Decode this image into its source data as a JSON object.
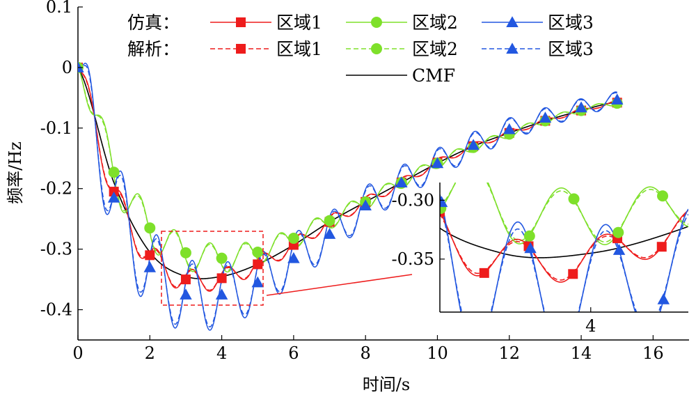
{
  "chart_data": {
    "type": "line",
    "title": "",
    "xlabel": "时间/s",
    "ylabel": "频率/Hz",
    "xlim": [
      0,
      17
    ],
    "ylim": [
      -0.45,
      0.1
    ],
    "x_ticks": [
      0,
      2,
      4,
      6,
      8,
      10,
      12,
      14,
      16
    ],
    "y_ticks": [
      0.1,
      0,
      -0.1,
      -0.2,
      -0.3,
      -0.4
    ],
    "x_tick_labels": [
      "0",
      "2",
      "4",
      "6",
      "8",
      "10",
      "12",
      "14",
      "16"
    ],
    "y_tick_labels": [
      "0.1",
      "0",
      "-0.1",
      "-0.2",
      "-0.3",
      "-0.4"
    ],
    "grid": false,
    "legend": {
      "position": "top",
      "row_labels": [
        "仿真：",
        "解析："
      ],
      "cmf_label": "CMF"
    },
    "colors": {
      "region1": "#ee1c1c",
      "region2": "#7ee02a",
      "region3": "#2257e0",
      "cmf": "#000000"
    },
    "marker_x": [
      0,
      1,
      2,
      3,
      4,
      5,
      6,
      7,
      8,
      9,
      10,
      11,
      12,
      13,
      14,
      15
    ],
    "series": [
      {
        "name": "区域1",
        "group": "仿真",
        "style": "solid",
        "marker": "square",
        "color": "#ee1c1c",
        "values": [
          0,
          -0.205,
          -0.31,
          -0.35,
          -0.348,
          -0.325,
          -0.293,
          -0.255,
          -0.222,
          -0.19,
          -0.157,
          -0.13,
          -0.108,
          -0.088,
          -0.071,
          -0.058
        ]
      },
      {
        "name": "区域2",
        "group": "仿真",
        "style": "solid",
        "marker": "circle",
        "color": "#7ee02a",
        "values": [
          0,
          -0.173,
          -0.265,
          -0.306,
          -0.315,
          -0.305,
          -0.282,
          -0.253,
          -0.222,
          -0.19,
          -0.158,
          -0.132,
          -0.11,
          -0.088,
          -0.071,
          -0.059
        ]
      },
      {
        "name": "区域3",
        "group": "仿真",
        "style": "solid",
        "marker": "triangle",
        "color": "#2257e0",
        "values": [
          0,
          -0.215,
          -0.33,
          -0.375,
          -0.375,
          -0.355,
          -0.315,
          -0.275,
          -0.228,
          -0.19,
          -0.158,
          -0.128,
          -0.102,
          -0.083,
          -0.066,
          -0.053
        ]
      },
      {
        "name": "区域1",
        "group": "解析",
        "style": "dashed",
        "marker": "square",
        "color": "#ee1c1c",
        "values": [
          0,
          -0.205,
          -0.31,
          -0.35,
          -0.348,
          -0.325,
          -0.293,
          -0.255,
          -0.222,
          -0.19,
          -0.157,
          -0.13,
          -0.108,
          -0.088,
          -0.071,
          -0.058
        ]
      },
      {
        "name": "区域2",
        "group": "解析",
        "style": "dashed",
        "marker": "circle",
        "color": "#7ee02a",
        "values": [
          0,
          -0.173,
          -0.265,
          -0.306,
          -0.315,
          -0.305,
          -0.282,
          -0.253,
          -0.222,
          -0.19,
          -0.158,
          -0.132,
          -0.11,
          -0.088,
          -0.071,
          -0.059
        ]
      },
      {
        "name": "区域3",
        "group": "解析",
        "style": "dashed",
        "marker": "triangle",
        "color": "#2257e0",
        "values": [
          0,
          -0.215,
          -0.33,
          -0.375,
          -0.375,
          -0.355,
          -0.315,
          -0.275,
          -0.228,
          -0.19,
          -0.158,
          -0.128,
          -0.102,
          -0.083,
          -0.066,
          -0.053
        ]
      },
      {
        "name": "CMF",
        "group": "",
        "style": "solid",
        "marker": "none",
        "color": "#000000",
        "values": [
          0,
          -0.19,
          -0.305,
          -0.345,
          -0.345,
          -0.325,
          -0.293,
          -0.255,
          -0.222,
          -0.19,
          -0.158,
          -0.13,
          -0.108,
          -0.088,
          -0.071,
          -0.057
        ]
      }
    ],
    "inset": {
      "x_range": [
        2.3,
        5.1
      ],
      "y_range": [
        -0.395,
        -0.285
      ],
      "x_ticks": [
        4
      ],
      "x_tick_labels": [
        "4"
      ],
      "y_ticks": [
        -0.3,
        -0.35
      ],
      "y_tick_labels": [
        "-0.30",
        "-0.35"
      ]
    }
  }
}
